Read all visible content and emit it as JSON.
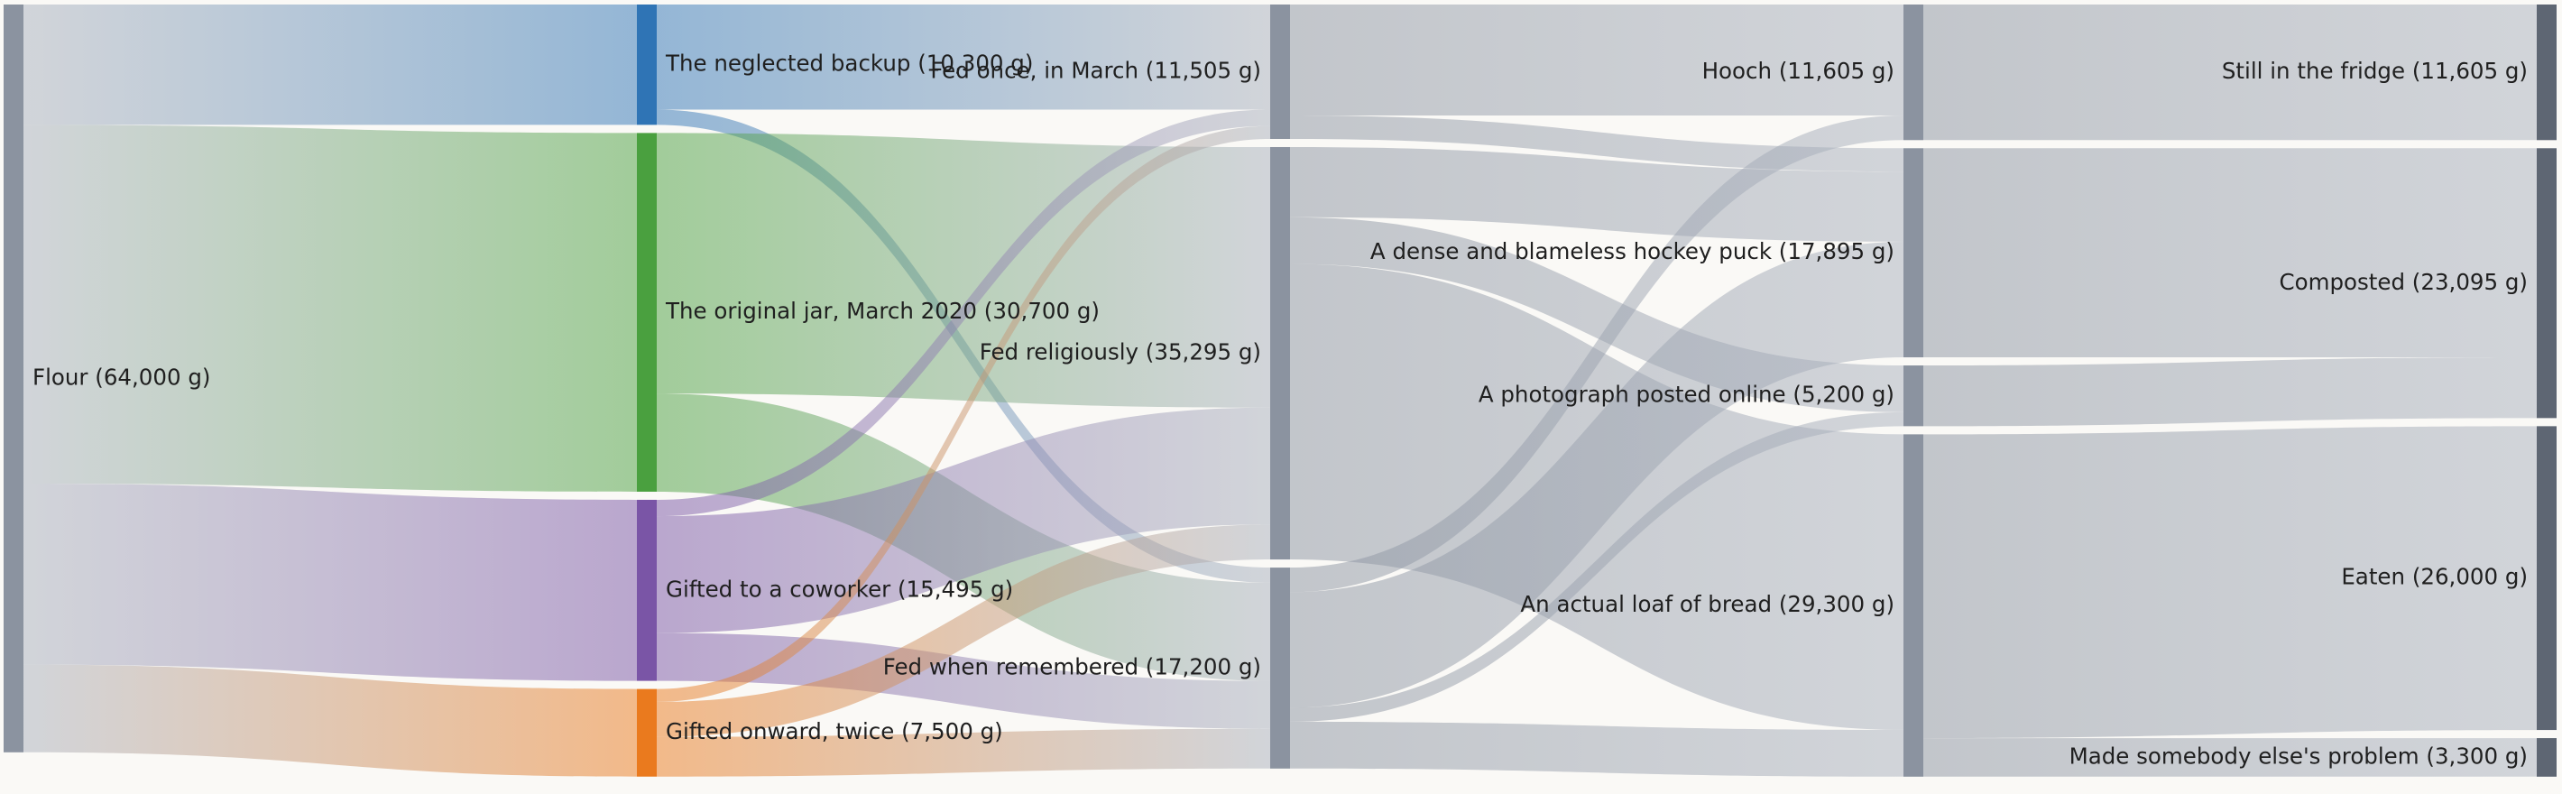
{
  "colors": {
    "background": "#faf9f6",
    "neutral_link": "#a9b0bd",
    "neutral_node": "#8b93a0",
    "node_dark": "#5e6673"
  },
  "chart_data": {
    "type": "sankey",
    "title": "",
    "units": "g",
    "columns": [
      {
        "level": 0,
        "nodes": [
          "flour"
        ]
      },
      {
        "level": 1,
        "nodes": [
          "backup",
          "original",
          "coworker",
          "onward"
        ]
      },
      {
        "level": 2,
        "nodes": [
          "fed_once",
          "fed_religiously",
          "fed_when_remembered"
        ]
      },
      {
        "level": 3,
        "nodes": [
          "hooch",
          "puck",
          "photo",
          "loaf"
        ]
      },
      {
        "level": 4,
        "nodes": [
          "fridge",
          "composted",
          "eaten",
          "someone_else"
        ]
      }
    ],
    "nodes": [
      {
        "id": "flour",
        "label": "Flour (64,000 g)",
        "value": 64000,
        "color": "#8b93a0"
      },
      {
        "id": "backup",
        "label": "The neglected backup (10,300 g)",
        "value": 10300,
        "color": "#2f74b5"
      },
      {
        "id": "original",
        "label": "The original jar, March 2020 (30,700 g)",
        "value": 30700,
        "color": "#4aa03f"
      },
      {
        "id": "coworker",
        "label": "Gifted to a coworker (15,495 g)",
        "value": 15495,
        "color": "#7a55a6"
      },
      {
        "id": "onward",
        "label": "Gifted onward, twice (7,500 g)",
        "value": 7500,
        "color": "#ea7a1e"
      },
      {
        "id": "fed_once",
        "label": "Fed once, in March (11,505 g)",
        "value": 11505,
        "color": "#8b93a0"
      },
      {
        "id": "fed_religiously",
        "label": "Fed religiously (35,295 g)",
        "value": 35295,
        "color": "#8b93a0"
      },
      {
        "id": "fed_when_remembered",
        "label": "Fed when remembered (17,200 g)",
        "value": 17200,
        "color": "#8b93a0"
      },
      {
        "id": "hooch",
        "label": "Hooch (11,605 g)",
        "value": 11605,
        "color": "#8b93a0"
      },
      {
        "id": "puck",
        "label": "A dense and blameless hockey puck (17,895 g)",
        "value": 17895,
        "color": "#8b93a0"
      },
      {
        "id": "photo",
        "label": "A photograph posted online (5,200 g)",
        "value": 5200,
        "color": "#8b93a0"
      },
      {
        "id": "loaf",
        "label": "An actual loaf of bread (29,300 g)",
        "value": 29300,
        "color": "#8b93a0"
      },
      {
        "id": "fridge",
        "label": "Still in the fridge (11,605 g)",
        "value": 11605,
        "color": "#5e6673"
      },
      {
        "id": "composted",
        "label": "Composted (23,095 g)",
        "value": 23095,
        "color": "#5e6673"
      },
      {
        "id": "eaten",
        "label": "Eaten (26,000 g)",
        "value": 26000,
        "color": "#5e6673"
      },
      {
        "id": "someone_else",
        "label": "Made somebody else's problem (3,300 g)",
        "value": 3300,
        "color": "#5e6673"
      }
    ],
    "links": [
      {
        "source": "flour",
        "target": "backup",
        "value": 10300
      },
      {
        "source": "flour",
        "target": "original",
        "value": 30700
      },
      {
        "source": "flour",
        "target": "coworker",
        "value": 15495
      },
      {
        "source": "flour",
        "target": "onward",
        "value": 7500
      },
      {
        "source": "backup",
        "target": "fed_once",
        "value": 9000
      },
      {
        "source": "backup",
        "target": "fed_when_remembered",
        "value": 1300
      },
      {
        "source": "original",
        "target": "fed_religiously",
        "value": 22300
      },
      {
        "source": "original",
        "target": "fed_when_remembered",
        "value": 8400
      },
      {
        "source": "coworker",
        "target": "fed_once",
        "value": 1400
      },
      {
        "source": "coworker",
        "target": "fed_religiously",
        "value": 10000
      },
      {
        "source": "coworker",
        "target": "fed_when_remembered",
        "value": 4095
      },
      {
        "source": "onward",
        "target": "fed_once",
        "value": 1105
      },
      {
        "source": "onward",
        "target": "fed_religiously",
        "value": 2995
      },
      {
        "source": "onward",
        "target": "fed_when_remembered",
        "value": 3400
      },
      {
        "source": "fed_once",
        "target": "hooch",
        "value": 9500
      },
      {
        "source": "fed_once",
        "target": "puck",
        "value": 2005
      },
      {
        "source": "fed_religiously",
        "target": "puck",
        "value": 6000
      },
      {
        "source": "fed_religiously",
        "target": "photo",
        "value": 4000
      },
      {
        "source": "fed_religiously",
        "target": "loaf",
        "value": 25295
      },
      {
        "source": "fed_when_remembered",
        "target": "hooch",
        "value": 2105
      },
      {
        "source": "fed_when_remembered",
        "target": "puck",
        "value": 9890
      },
      {
        "source": "fed_when_remembered",
        "target": "photo",
        "value": 1200
      },
      {
        "source": "fed_when_remembered",
        "target": "loaf",
        "value": 4005
      },
      {
        "source": "hooch",
        "target": "fridge",
        "value": 11605
      },
      {
        "source": "puck",
        "target": "composted",
        "value": 17895
      },
      {
        "source": "photo",
        "target": "composted",
        "value": 5200
      },
      {
        "source": "loaf",
        "target": "eaten",
        "value": 26000
      },
      {
        "source": "loaf",
        "target": "someone_else",
        "value": 3300
      }
    ]
  }
}
